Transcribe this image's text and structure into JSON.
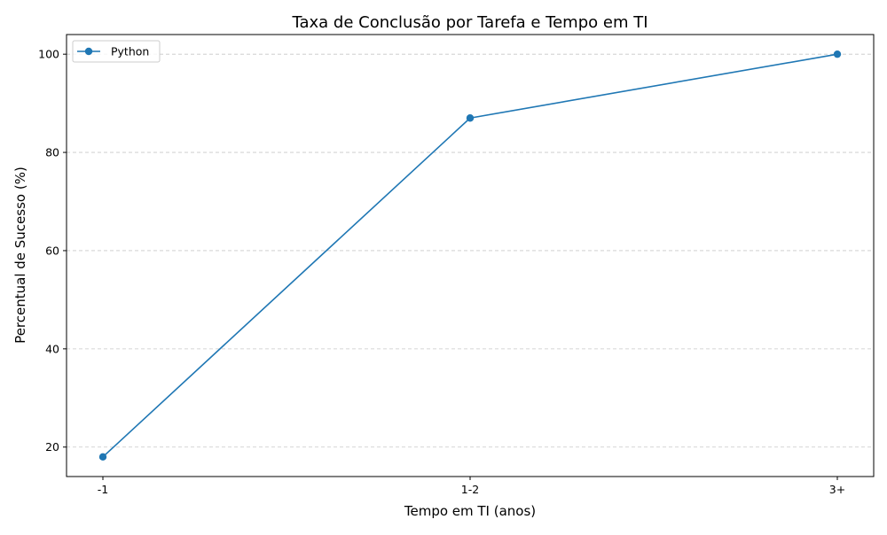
{
  "chart_data": {
    "type": "line",
    "title": "Taxa de Conclusão por Tarefa e Tempo em TI",
    "xlabel": "Tempo em TI (anos)",
    "ylabel": "Percentual de Sucesso (%)",
    "categories": [
      "-1",
      "1-2",
      "3+"
    ],
    "series": [
      {
        "name": "Python",
        "values": [
          18,
          87,
          100
        ],
        "color": "#1f77b4"
      }
    ],
    "ylim": [
      14,
      104
    ],
    "yticks": [
      20,
      40,
      60,
      80,
      100
    ],
    "grid": "y-dashed",
    "legend": "upper-left"
  }
}
